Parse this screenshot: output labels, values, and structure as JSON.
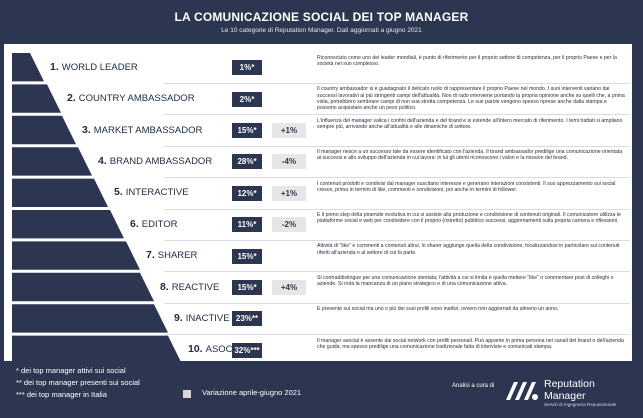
{
  "header": {
    "title": "LA COMUNICAZIONE SOCIAL DEI TOP MANAGER",
    "subtitle": "Le 10 categorie di Reputation Manager. Dati aggiornati a giugno 2021"
  },
  "chart_data": {
    "type": "table",
    "title": "LA COMUNICAZIONE SOCIAL DEI TOP MANAGER",
    "subtitle": "Le 10 categorie di Reputation Manager. Dati aggiornati a giugno 2021",
    "rows": [
      {
        "rank": "1.",
        "name": "WORLD LEADER",
        "pct": "1%*",
        "var": "",
        "desc": "Riconosciuto come uno dei leader mondiali, è punto di riferimento per il proprio settore di competenza, per il proprio Paese e per la società nel suo complesso."
      },
      {
        "rank": "2.",
        "name": "COUNTRY AMBASSADOR",
        "pct": "2%*",
        "var": "",
        "desc": "Il country ambassador si è guadagnato il delicato ruolo di rappresentare il proprio Paese nel mondo. I suoi interventi variano dai successi lavorativi ai più stringenti campi dell'attualità. Non di rado interviene portando la propria opinione anche su quelli che, a prima vista, potrebbero sembrare campi di non sua stretta competenza. Le sue parole vengono spesso riprese anche dalla stampa e possono acquistare anche un peso politico."
      },
      {
        "rank": "3.",
        "name": "MARKET AMBASSADOR",
        "pct": "15%*",
        "var": "+1%",
        "desc": "L'influenza del manager valica i confini dell'azienda e del brand e si estende all'intero mercato di riferimento. I temi trattati si ampliano sempre più, arrivando anche all'attualità e alle dinamiche di settore."
      },
      {
        "rank": "4.",
        "name": "BRAND AMBASSADOR",
        "pct": "28%*",
        "var": "-4%",
        "desc": "Il manager riesce a un successo tale da essere identificato con l'azienda. Il brand ambassador predilige una comunicazione orientata ai successi e allo sviluppo dell'azienda in cui lavora: in lui gli utenti riconoscono i valori e la mission del brand."
      },
      {
        "rank": "5.",
        "name": "INTERACTIVE",
        "pct": "12%*",
        "var": "+1%",
        "desc": "I contenuti prodotti e condivisi dal manager suscitano interesse e generano interazioni consistenti. Il suo apprezzamento sui social cresce, prima in termini di like, commenti e condivisioni, poi anche in termini di follower."
      },
      {
        "rank": "6.",
        "name": "EDITOR",
        "pct": "11%*",
        "var": "-2%",
        "desc": "È il primo step della piramide evolutiva in cui si assiste alla produzione e condivisione di contenuti originali. Il comunicatore utilizza le piattaforme social e web per condividere con il proprio (ristretto) pubblico successi, aggiornamenti sulla propria carriera e riflessioni."
      },
      {
        "rank": "7.",
        "name": "SHARER",
        "pct": "15%*",
        "var": "",
        "desc": "Attività di \"like\" e commenti a contenuti altrui, lo sharer aggiunge quella della condivisione, focalizzandosi in particolare sui contenuti riferiti all'azienda o al settore di cui fa parte."
      },
      {
        "rank": "8.",
        "name": "REACTIVE",
        "pct": "15%*",
        "var": "+4%",
        "desc": "Si contraddistingue per una comunicazione stentata; l'attività a cui si limita è quella mettere \"like\" o commentare post di colleghi o aziende. Si nota la mancanza di un piano strategico e di una comunicazione attiva."
      },
      {
        "rank": "9.",
        "name": "INACTIVE",
        "pct": "23%**",
        "var": "",
        "desc": "È presente sui social ma uno o più dei suoi profili sono inattivi, ovvero non aggiornati da almeno un anno."
      },
      {
        "rank": "10.",
        "name": "ASOCIAL",
        "pct": "32%***",
        "var": "",
        "desc": "Il manager asocial è assente dai social network con profili personali. Può apparire in prima persona nei canali del brand o dell'azienda che guida, ma spesso predilige una comunicazione tradizionale fatta di interviste e comunicati stampa."
      }
    ]
  },
  "legend": {
    "note1": "* dei top manager attivi sui social",
    "note2": "** dei top manager presenti sui social",
    "note3": "*** dei top manager in Italia",
    "variation": "Variazione aprile-giugno 2021"
  },
  "footer": {
    "analisi": "Analisi a cura di",
    "brand_line1": "Reputation",
    "brand_line2": "Manager",
    "brand_sub": "Servizi di Ingegneria Reputazionale"
  }
}
